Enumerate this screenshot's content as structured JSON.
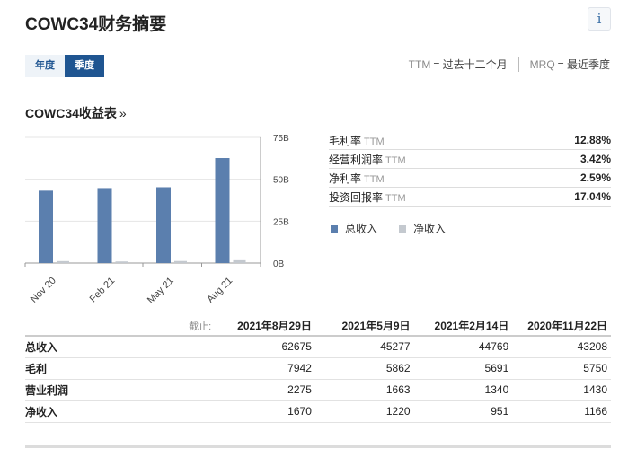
{
  "page": {
    "title": "COWC34财务摘要",
    "info_icon": "info-icon"
  },
  "period_tabs": [
    {
      "label": "年度",
      "active": false
    },
    {
      "label": "季度",
      "active": true
    }
  ],
  "legend_note": {
    "ttm_abbr": "TTM",
    "ttm_text": "= 过去十二个月",
    "mrq_abbr": "MRQ",
    "mrq_text": "= 最近季度"
  },
  "income_section": {
    "title": "COWC34收益表",
    "link_glyph": "»"
  },
  "metrics": [
    {
      "label": "毛利率",
      "tag": "TTM",
      "value": "12.88%"
    },
    {
      "label": "经营利润率",
      "tag": "TTM",
      "value": "3.42%"
    },
    {
      "label": "净利率",
      "tag": "TTM",
      "value": "2.59%"
    },
    {
      "label": "投资回报率",
      "tag": "TTM",
      "value": "17.04%"
    }
  ],
  "colors": {
    "revenue": "#5b7fae",
    "net_income": "#c4c9cf",
    "accent": "#1f5591"
  },
  "chart_data": {
    "type": "bar",
    "categories": [
      "Nov 20",
      "Feb 21",
      "May 21",
      "Aug 21"
    ],
    "series": [
      {
        "name": "总收入",
        "values": [
          43.208,
          44.769,
          45.277,
          62.675
        ]
      },
      {
        "name": "净收入",
        "values": [
          1.166,
          0.951,
          1.22,
          1.67
        ]
      }
    ],
    "y_ticks": [
      "0B",
      "25B",
      "50B",
      "75B"
    ],
    "ylim": [
      0,
      75
    ],
    "y_axis_side": "right",
    "grid": true,
    "legend_position": "bottom-right"
  },
  "table": {
    "asof_label": "截止:",
    "dates": [
      "2021年8月29日",
      "2021年5月9日",
      "2021年2月14日",
      "2020年11月22日"
    ],
    "rows": [
      {
        "label": "总收入",
        "values": [
          "62675",
          "45277",
          "44769",
          "43208"
        ]
      },
      {
        "label": "毛利",
        "values": [
          "7942",
          "5862",
          "5691",
          "5750"
        ]
      },
      {
        "label": "营业利润",
        "values": [
          "2275",
          "1663",
          "1340",
          "1430"
        ]
      },
      {
        "label": "净收入",
        "values": [
          "1670",
          "1220",
          "951",
          "1166"
        ]
      }
    ]
  }
}
